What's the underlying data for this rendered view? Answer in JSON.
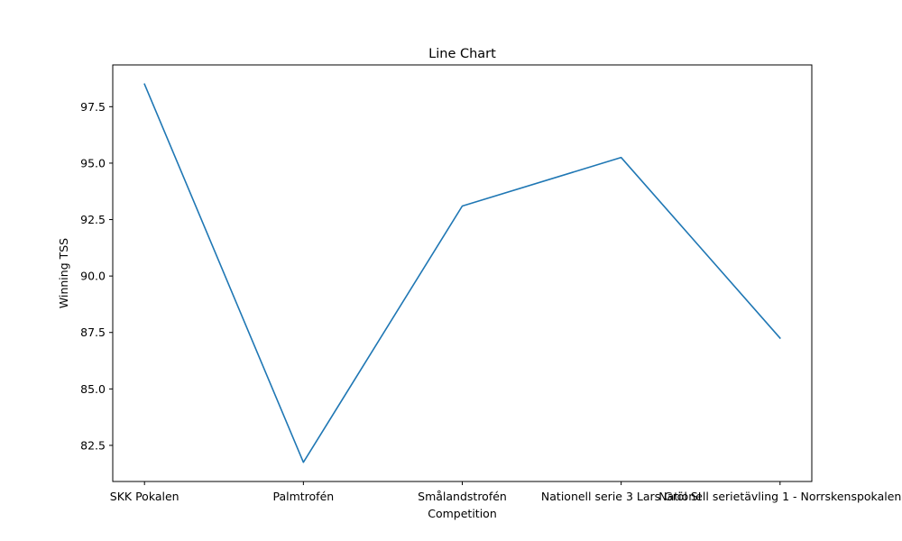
{
  "chart_data": {
    "type": "line",
    "title": "Line Chart",
    "xlabel": "Competition",
    "ylabel": "Winning TSS",
    "categories": [
      "SKK Pokalen",
      "Palmtrofén",
      "Smålandstrofén",
      "Nationell serie 3 Lars Gröl SI",
      "Nationell serietävling 1 - Norrskenspokalen"
    ],
    "series": [
      {
        "values": [
          98.5,
          81.75,
          93.1,
          95.25,
          87.25
        ]
      }
    ],
    "ylim": [
      80.9,
      99.35
    ],
    "yticks": [
      82.5,
      85.0,
      87.5,
      90.0,
      92.5,
      95.0,
      97.5
    ],
    "grid": false,
    "legend": "none",
    "line_color": "#1f77b4"
  }
}
